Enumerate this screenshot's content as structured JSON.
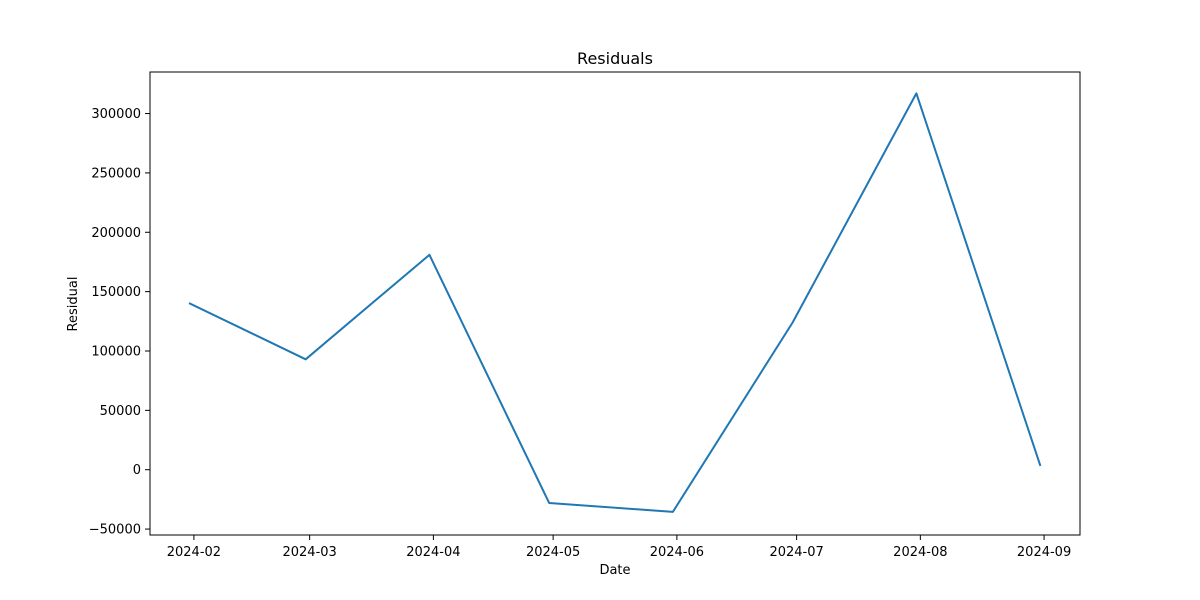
{
  "chart_data": {
    "type": "line",
    "title": "Residuals",
    "xlabel": "Date",
    "ylabel": "Residual",
    "x": [
      "2024-01-31",
      "2024-02-29",
      "2024-03-31",
      "2024-04-30",
      "2024-05-31",
      "2024-06-30",
      "2024-07-31",
      "2024-08-31"
    ],
    "series": [
      {
        "values": [
          140000,
          93000,
          181000,
          -28000,
          -35500,
          124000,
          317000,
          4000
        ],
        "color": "#1f77b4"
      }
    ],
    "xlim": [
      "2024-01-21",
      "2024-09-10"
    ],
    "ylim": [
      -55000,
      335000
    ],
    "yticks": [
      -50000,
      0,
      50000,
      100000,
      150000,
      200000,
      250000,
      300000
    ],
    "xticks": [
      "2024-02-01",
      "2024-03-01",
      "2024-04-01",
      "2024-05-01",
      "2024-06-01",
      "2024-07-01",
      "2024-08-01",
      "2024-09-01"
    ],
    "xtick_labels": [
      "2024-02",
      "2024-03",
      "2024-04",
      "2024-05",
      "2024-06",
      "2024-07",
      "2024-08",
      "2024-09"
    ],
    "grid": false,
    "legend": false
  }
}
